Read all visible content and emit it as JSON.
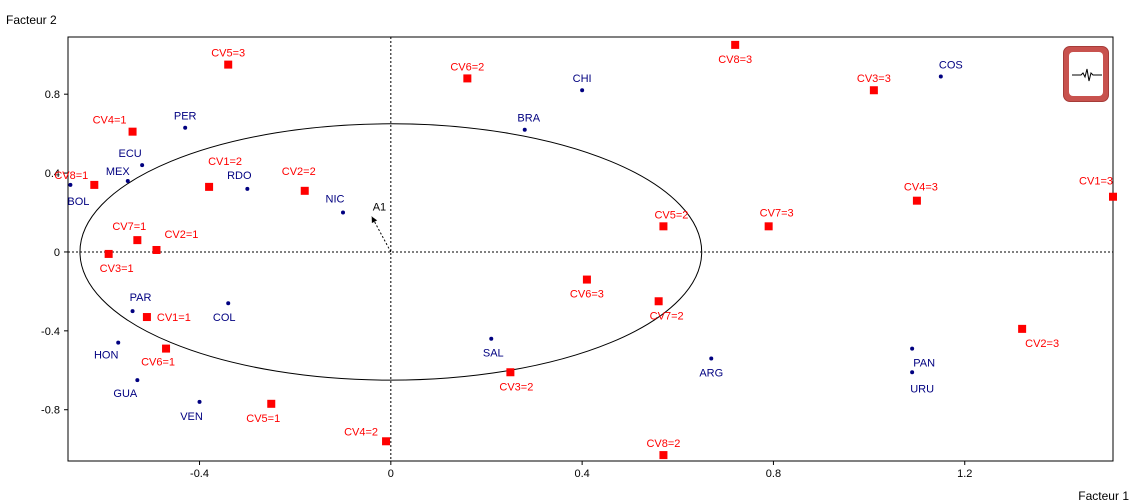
{
  "chart_data": {
    "type": "scatter",
    "title": "",
    "xlabel": "Facteur 1",
    "ylabel": "Facteur 2",
    "xlim": [
      -0.675,
      1.51
    ],
    "ylim": [
      -1.06,
      1.09
    ],
    "x_ticks": [
      -0.4,
      0,
      0.4,
      0.8,
      1.2
    ],
    "y_ticks": [
      -0.8,
      -0.4,
      0,
      0.4,
      0.8
    ],
    "x_tick_labels": [
      "-0.4",
      "0",
      "0.4",
      "0.8",
      "1.2"
    ],
    "y_tick_labels": [
      "-0.8",
      "-0.4",
      "0",
      "0.4",
      "0.8"
    ],
    "grid": false,
    "reference_lines": "dotted lines through the origin",
    "ellipse": {
      "center": [
        0,
        0
      ],
      "rx": 0.65,
      "ry": 0.65
    },
    "series": [
      {
        "name": "",
        "color": "#ff0000",
        "marker": "square",
        "points": [
          {
            "label": "CV5=3",
            "x": -0.34,
            "y": 0.95
          },
          {
            "label": "CV6=2",
            "x": 0.16,
            "y": 0.88
          },
          {
            "label": "CV8=3",
            "x": 0.72,
            "y": 1.05
          },
          {
            "label": "CV3=3",
            "x": 1.01,
            "y": 0.82
          },
          {
            "label": "CV4=1",
            "x": -0.54,
            "y": 0.61
          },
          {
            "label": "CV8=1",
            "x": -0.62,
            "y": 0.34
          },
          {
            "label": "CV1=2",
            "x": -0.38,
            "y": 0.33
          },
          {
            "label": "CV2=2",
            "x": -0.18,
            "y": 0.31
          },
          {
            "label": "CV1=3",
            "x": 1.51,
            "y": 0.28
          },
          {
            "label": "CV4=3",
            "x": 1.1,
            "y": 0.26
          },
          {
            "label": "CV7=1",
            "x": -0.53,
            "y": 0.06
          },
          {
            "label": "CV2=1",
            "x": -0.49,
            "y": 0.01
          },
          {
            "label": "CV3=1",
            "x": -0.59,
            "y": -0.01
          },
          {
            "label": "CV5=2",
            "x": 0.57,
            "y": 0.13
          },
          {
            "label": "CV7=3",
            "x": 0.79,
            "y": 0.13
          },
          {
            "label": "CV6=3",
            "x": 0.41,
            "y": -0.14
          },
          {
            "label": "CV7=2",
            "x": 0.56,
            "y": -0.25
          },
          {
            "label": "CV1=1",
            "x": -0.51,
            "y": -0.33
          },
          {
            "label": "CV6=1",
            "x": -0.47,
            "y": -0.49
          },
          {
            "label": "CV2=3",
            "x": 1.32,
            "y": -0.39
          },
          {
            "label": "CV3=2",
            "x": 0.25,
            "y": -0.61
          },
          {
            "label": "CV5=1",
            "x": -0.25,
            "y": -0.77
          },
          {
            "label": "CV4=2",
            "x": -0.01,
            "y": -0.96
          },
          {
            "label": "CV8=2",
            "x": 0.57,
            "y": -1.03
          }
        ]
      },
      {
        "name": "",
        "color": "#000080",
        "marker": "dot",
        "points": [
          {
            "label": "PER",
            "x": -0.43,
            "y": 0.63
          },
          {
            "label": "CHI",
            "x": 0.4,
            "y": 0.82
          },
          {
            "label": "COS",
            "x": 1.15,
            "y": 0.89
          },
          {
            "label": "BRA",
            "x": 0.28,
            "y": 0.62
          },
          {
            "label": "ECU",
            "x": -0.52,
            "y": 0.44
          },
          {
            "label": "MEX",
            "x": -0.55,
            "y": 0.36
          },
          {
            "label": "BOL",
            "x": -0.67,
            "y": 0.34
          },
          {
            "label": "RDO",
            "x": -0.3,
            "y": 0.32
          },
          {
            "label": "NIC",
            "x": -0.1,
            "y": 0.2
          },
          {
            "label": "PAR",
            "x": -0.54,
            "y": -0.3
          },
          {
            "label": "COL",
            "x": -0.34,
            "y": -0.26
          },
          {
            "label": "HON",
            "x": -0.57,
            "y": -0.46
          },
          {
            "label": "GUA",
            "x": -0.53,
            "y": -0.65
          },
          {
            "label": "VEN",
            "x": -0.4,
            "y": -0.76
          },
          {
            "label": "SAL",
            "x": 0.21,
            "y": -0.44
          },
          {
            "label": "ARG",
            "x": 0.67,
            "y": -0.54
          },
          {
            "label": "PAN",
            "x": 1.09,
            "y": -0.49
          },
          {
            "label": "URU",
            "x": 1.09,
            "y": -0.61
          }
        ]
      }
    ],
    "variables": [
      {
        "label": "A1",
        "x": -0.04,
        "y": 0.18
      }
    ]
  }
}
